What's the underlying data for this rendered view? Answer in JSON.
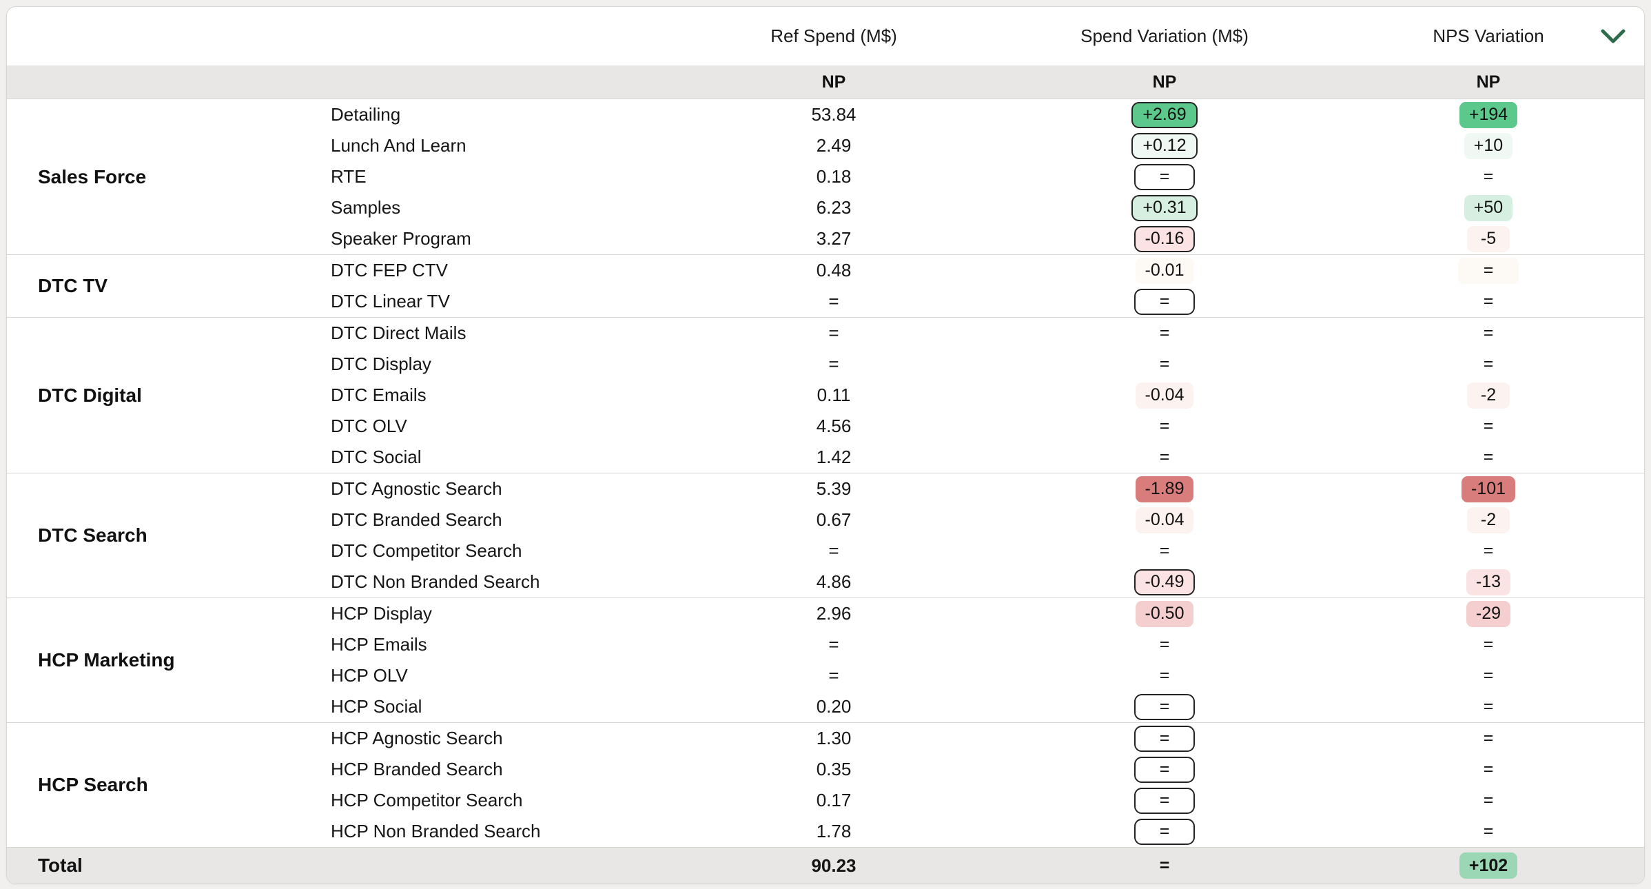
{
  "colors": {
    "g3": "#5dc88c",
    "g2m": "#9bd6b5",
    "g2": "#d7efe1",
    "g1": "#eff8f2",
    "r4": "#d97c7c",
    "r3": "#f5cfd0",
    "r2": "#fae3e2",
    "r1": "#fcf2ef",
    "r0": "#fdf9f5",
    "w": "#ffffff",
    "none": "transparent",
    "accent_green": "#2e6b4d"
  },
  "card": {
    "columns": [
      {
        "label": "Ref Spend (M$)",
        "sub": "NP"
      },
      {
        "label": "Spend Variation (M$)",
        "sub": "NP"
      },
      {
        "label": "NPS Variation",
        "sub": "NP"
      }
    ],
    "collapse_icon": "chevron-down",
    "groups": [
      {
        "label": "Sales Force",
        "rows": [
          {
            "channel": "Detailing",
            "ref": "53.84",
            "spend": {
              "text": "+2.69",
              "style": "g3",
              "bordered": true
            },
            "nps": {
              "text": "+194",
              "style": "g3"
            }
          },
          {
            "channel": "Lunch And Learn",
            "ref": "2.49",
            "spend": {
              "text": "+0.12",
              "style": "g1",
              "bordered": true
            },
            "nps": {
              "text": "+10",
              "style": "g1"
            }
          },
          {
            "channel": "RTE",
            "ref": "0.18",
            "spend": {
              "text": "=",
              "style": "w",
              "bordered": true
            },
            "nps": {
              "text": "=",
              "style": "none"
            }
          },
          {
            "channel": "Samples",
            "ref": "6.23",
            "spend": {
              "text": "+0.31",
              "style": "g2",
              "bordered": true
            },
            "nps": {
              "text": "+50",
              "style": "g2"
            }
          },
          {
            "channel": "Speaker Program",
            "ref": "3.27",
            "spend": {
              "text": "-0.16",
              "style": "r2",
              "bordered": true
            },
            "nps": {
              "text": "-5",
              "style": "r1"
            }
          }
        ]
      },
      {
        "label": "DTC TV",
        "rows": [
          {
            "channel": "DTC FEP CTV",
            "ref": "0.48",
            "spend": {
              "text": "-0.01",
              "style": "r0",
              "bordered": false
            },
            "nps": {
              "text": "=",
              "style": "r0"
            }
          },
          {
            "channel": "DTC Linear TV",
            "ref": "=",
            "spend": {
              "text": "=",
              "style": "w",
              "bordered": true
            },
            "nps": {
              "text": "=",
              "style": "none"
            }
          }
        ]
      },
      {
        "label": "DTC Digital",
        "rows": [
          {
            "channel": "DTC Direct Mails",
            "ref": "=",
            "spend": {
              "text": "=",
              "style": "none",
              "bordered": false
            },
            "nps": {
              "text": "=",
              "style": "none"
            }
          },
          {
            "channel": "DTC Display",
            "ref": "=",
            "spend": {
              "text": "=",
              "style": "none",
              "bordered": false
            },
            "nps": {
              "text": "=",
              "style": "none"
            }
          },
          {
            "channel": "DTC Emails",
            "ref": "0.11",
            "spend": {
              "text": "-0.04",
              "style": "r1",
              "bordered": false
            },
            "nps": {
              "text": "-2",
              "style": "r1"
            }
          },
          {
            "channel": "DTC OLV",
            "ref": "4.56",
            "spend": {
              "text": "=",
              "style": "none",
              "bordered": false
            },
            "nps": {
              "text": "=",
              "style": "none"
            }
          },
          {
            "channel": "DTC Social",
            "ref": "1.42",
            "spend": {
              "text": "=",
              "style": "none",
              "bordered": false
            },
            "nps": {
              "text": "=",
              "style": "none"
            }
          }
        ]
      },
      {
        "label": "DTC Search",
        "rows": [
          {
            "channel": "DTC Agnostic Search",
            "ref": "5.39",
            "spend": {
              "text": "-1.89",
              "style": "r4",
              "bordered": false
            },
            "nps": {
              "text": "-101",
              "style": "r4"
            }
          },
          {
            "channel": "DTC Branded Search",
            "ref": "0.67",
            "spend": {
              "text": "-0.04",
              "style": "r1",
              "bordered": false
            },
            "nps": {
              "text": "-2",
              "style": "r1"
            }
          },
          {
            "channel": "DTC Competitor Search",
            "ref": "=",
            "spend": {
              "text": "=",
              "style": "none",
              "bordered": false
            },
            "nps": {
              "text": "=",
              "style": "none"
            }
          },
          {
            "channel": "DTC Non Branded Search",
            "ref": "4.86",
            "spend": {
              "text": "-0.49",
              "style": "r2",
              "bordered": true
            },
            "nps": {
              "text": "-13",
              "style": "r2"
            }
          }
        ]
      },
      {
        "label": "HCP Marketing",
        "rows": [
          {
            "channel": "HCP Display",
            "ref": "2.96",
            "spend": {
              "text": "-0.50",
              "style": "r3",
              "bordered": false
            },
            "nps": {
              "text": "-29",
              "style": "r3"
            }
          },
          {
            "channel": "HCP Emails",
            "ref": "=",
            "spend": {
              "text": "=",
              "style": "none",
              "bordered": false
            },
            "nps": {
              "text": "=",
              "style": "none"
            }
          },
          {
            "channel": "HCP OLV",
            "ref": "=",
            "spend": {
              "text": "=",
              "style": "none",
              "bordered": false
            },
            "nps": {
              "text": "=",
              "style": "none"
            }
          },
          {
            "channel": "HCP Social",
            "ref": "0.20",
            "spend": {
              "text": "=",
              "style": "w",
              "bordered": true
            },
            "nps": {
              "text": "=",
              "style": "none"
            }
          }
        ]
      },
      {
        "label": "HCP Search",
        "rows": [
          {
            "channel": "HCP Agnostic Search",
            "ref": "1.30",
            "spend": {
              "text": "=",
              "style": "w",
              "bordered": true
            },
            "nps": {
              "text": "=",
              "style": "none"
            }
          },
          {
            "channel": "HCP Branded Search",
            "ref": "0.35",
            "spend": {
              "text": "=",
              "style": "w",
              "bordered": true
            },
            "nps": {
              "text": "=",
              "style": "none"
            }
          },
          {
            "channel": "HCP Competitor Search",
            "ref": "0.17",
            "spend": {
              "text": "=",
              "style": "w",
              "bordered": true
            },
            "nps": {
              "text": "=",
              "style": "none"
            }
          },
          {
            "channel": "HCP Non Branded Search",
            "ref": "1.78",
            "spend": {
              "text": "=",
              "style": "w",
              "bordered": true
            },
            "nps": {
              "text": "=",
              "style": "none"
            }
          }
        ]
      }
    ],
    "total": {
      "label": "Total",
      "ref": "90.23",
      "spend": {
        "text": "=",
        "style": "none",
        "bordered": false
      },
      "nps": {
        "text": "+102",
        "style": "g2m",
        "bordered": false
      }
    }
  }
}
